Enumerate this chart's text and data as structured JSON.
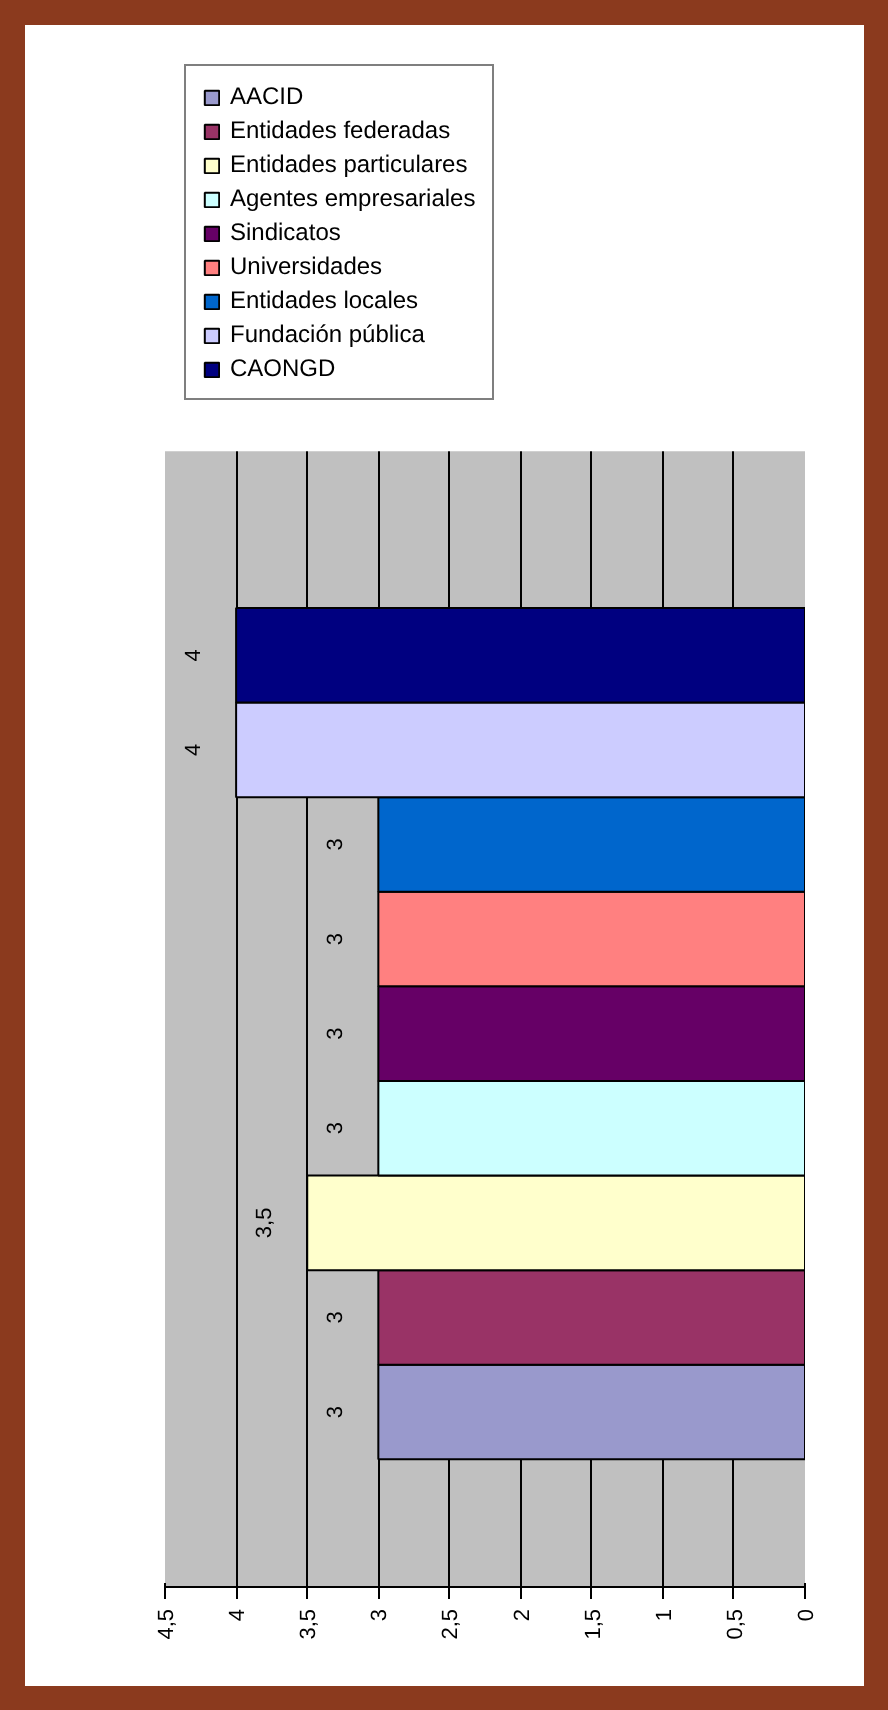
{
  "chart_data": {
    "type": "bar",
    "orientation": "horizontal",
    "categories": [
      null
    ],
    "series": [
      {
        "name": "AACID",
        "color": "#9999cc",
        "values": [
          3
        ],
        "value_labels": [
          "3"
        ]
      },
      {
        "name": "Entidades federadas",
        "color": "#993366",
        "values": [
          3
        ],
        "value_labels": [
          "3"
        ]
      },
      {
        "name": "Entidades particulares",
        "color": "#ffffcc",
        "values": [
          3.5
        ],
        "value_labels": [
          "3,5"
        ]
      },
      {
        "name": "Agentes empresariales",
        "color": "#ccffff",
        "values": [
          3
        ],
        "value_labels": [
          "3"
        ]
      },
      {
        "name": "Sindicatos",
        "color": "#660066",
        "values": [
          3
        ],
        "value_labels": [
          "3"
        ]
      },
      {
        "name": "Universidades",
        "color": "#ff8080",
        "values": [
          3
        ],
        "value_labels": [
          "3"
        ]
      },
      {
        "name": "Entidades locales",
        "color": "#0066cc",
        "values": [
          3
        ],
        "value_labels": [
          "3"
        ]
      },
      {
        "name": "Fundación pública",
        "color": "#ccccff",
        "values": [
          4
        ],
        "value_labels": [
          "4"
        ]
      },
      {
        "name": "CAONGD",
        "color": "#000080",
        "values": [
          4
        ],
        "value_labels": [
          "4"
        ]
      }
    ],
    "xlim": [
      4.5,
      0
    ],
    "xticks": [
      0,
      {
        "value": 0.5,
        "label": "0,5"
      },
      1,
      {
        "value": 1.5,
        "label": "1,5"
      },
      2,
      {
        "value": 2.5,
        "label": "2,5"
      },
      3,
      {
        "value": 3.5,
        "label": "3,5"
      },
      4,
      {
        "value": 4.5,
        "label": "4,5"
      }
    ],
    "grid": "x",
    "legend": "top",
    "tick_labels": "x"
  }
}
